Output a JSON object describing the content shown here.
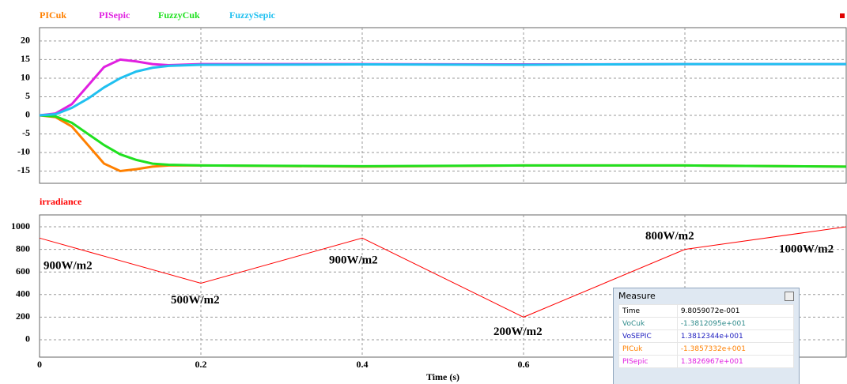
{
  "chart_data": [
    {
      "type": "line",
      "x": [
        0,
        0.02,
        0.04,
        0.06,
        0.08,
        0.1,
        0.12,
        0.14,
        0.16,
        0.2,
        0.4,
        0.6,
        0.8,
        1.0
      ],
      "series": [
        {
          "name": "PICuk",
          "color": "#ff8000",
          "values": [
            0,
            -0.5,
            -3,
            -8,
            -13,
            -15,
            -14.5,
            -13.8,
            -13.5,
            -13.5,
            -13.8,
            -13.5,
            -13.5,
            -13.8
          ]
        },
        {
          "name": "PISepic",
          "color": "#e020e0",
          "values": [
            0,
            0.5,
            3,
            8,
            13,
            15,
            14.5,
            13.8,
            13.5,
            13.8,
            13.8,
            13.7,
            13.8,
            13.8
          ]
        },
        {
          "name": "FuzzyCuk",
          "color": "#20e020",
          "values": [
            0,
            -0.3,
            -2,
            -5,
            -8,
            -10.5,
            -12,
            -13,
            -13.3,
            -13.5,
            -13.7,
            -13.5,
            -13.5,
            -13.8
          ]
        },
        {
          "name": "FuzzySepic",
          "color": "#20c0f0",
          "values": [
            0,
            0.3,
            2,
            4.5,
            7.5,
            10,
            11.8,
            12.8,
            13.3,
            13.6,
            13.7,
            13.6,
            13.8,
            13.8
          ]
        }
      ],
      "ylim": [
        -18.3,
        23.6
      ],
      "yticks": [
        -15,
        -10,
        -5,
        0,
        5,
        10,
        15,
        20
      ],
      "grid": true
    },
    {
      "type": "line",
      "x": [
        0,
        0.2,
        0.4,
        0.6,
        0.8,
        1.0
      ],
      "series": [
        {
          "name": "irradiance",
          "color": "#ff0000",
          "values": [
            900,
            500,
            900,
            200,
            800,
            1000
          ]
        }
      ],
      "annotations": [
        "900W/m2",
        "500W/m2",
        "900W/m2",
        "200W/m2",
        "800W/m2",
        "1000W/m2"
      ],
      "xlabel": "Time (s)",
      "xlim": [
        0,
        1
      ],
      "xticks": [
        0,
        0.2,
        0.4,
        0.6,
        0.8
      ],
      "ylim": [
        -154,
        1105
      ],
      "yticks": [
        0,
        200,
        400,
        600,
        800,
        1000
      ],
      "grid": true
    }
  ],
  "measure": {
    "title": "Measure",
    "rows": [
      [
        "Time",
        "9.8059072e-001"
      ],
      [
        "VoCuk",
        "-1.3812095e+001"
      ],
      [
        "VoSEPIC",
        "1.3812344e+001"
      ],
      [
        "PICuk",
        "-1.3857332e+001"
      ],
      [
        "PISepic",
        "1.3826967e+001"
      ]
    ]
  }
}
